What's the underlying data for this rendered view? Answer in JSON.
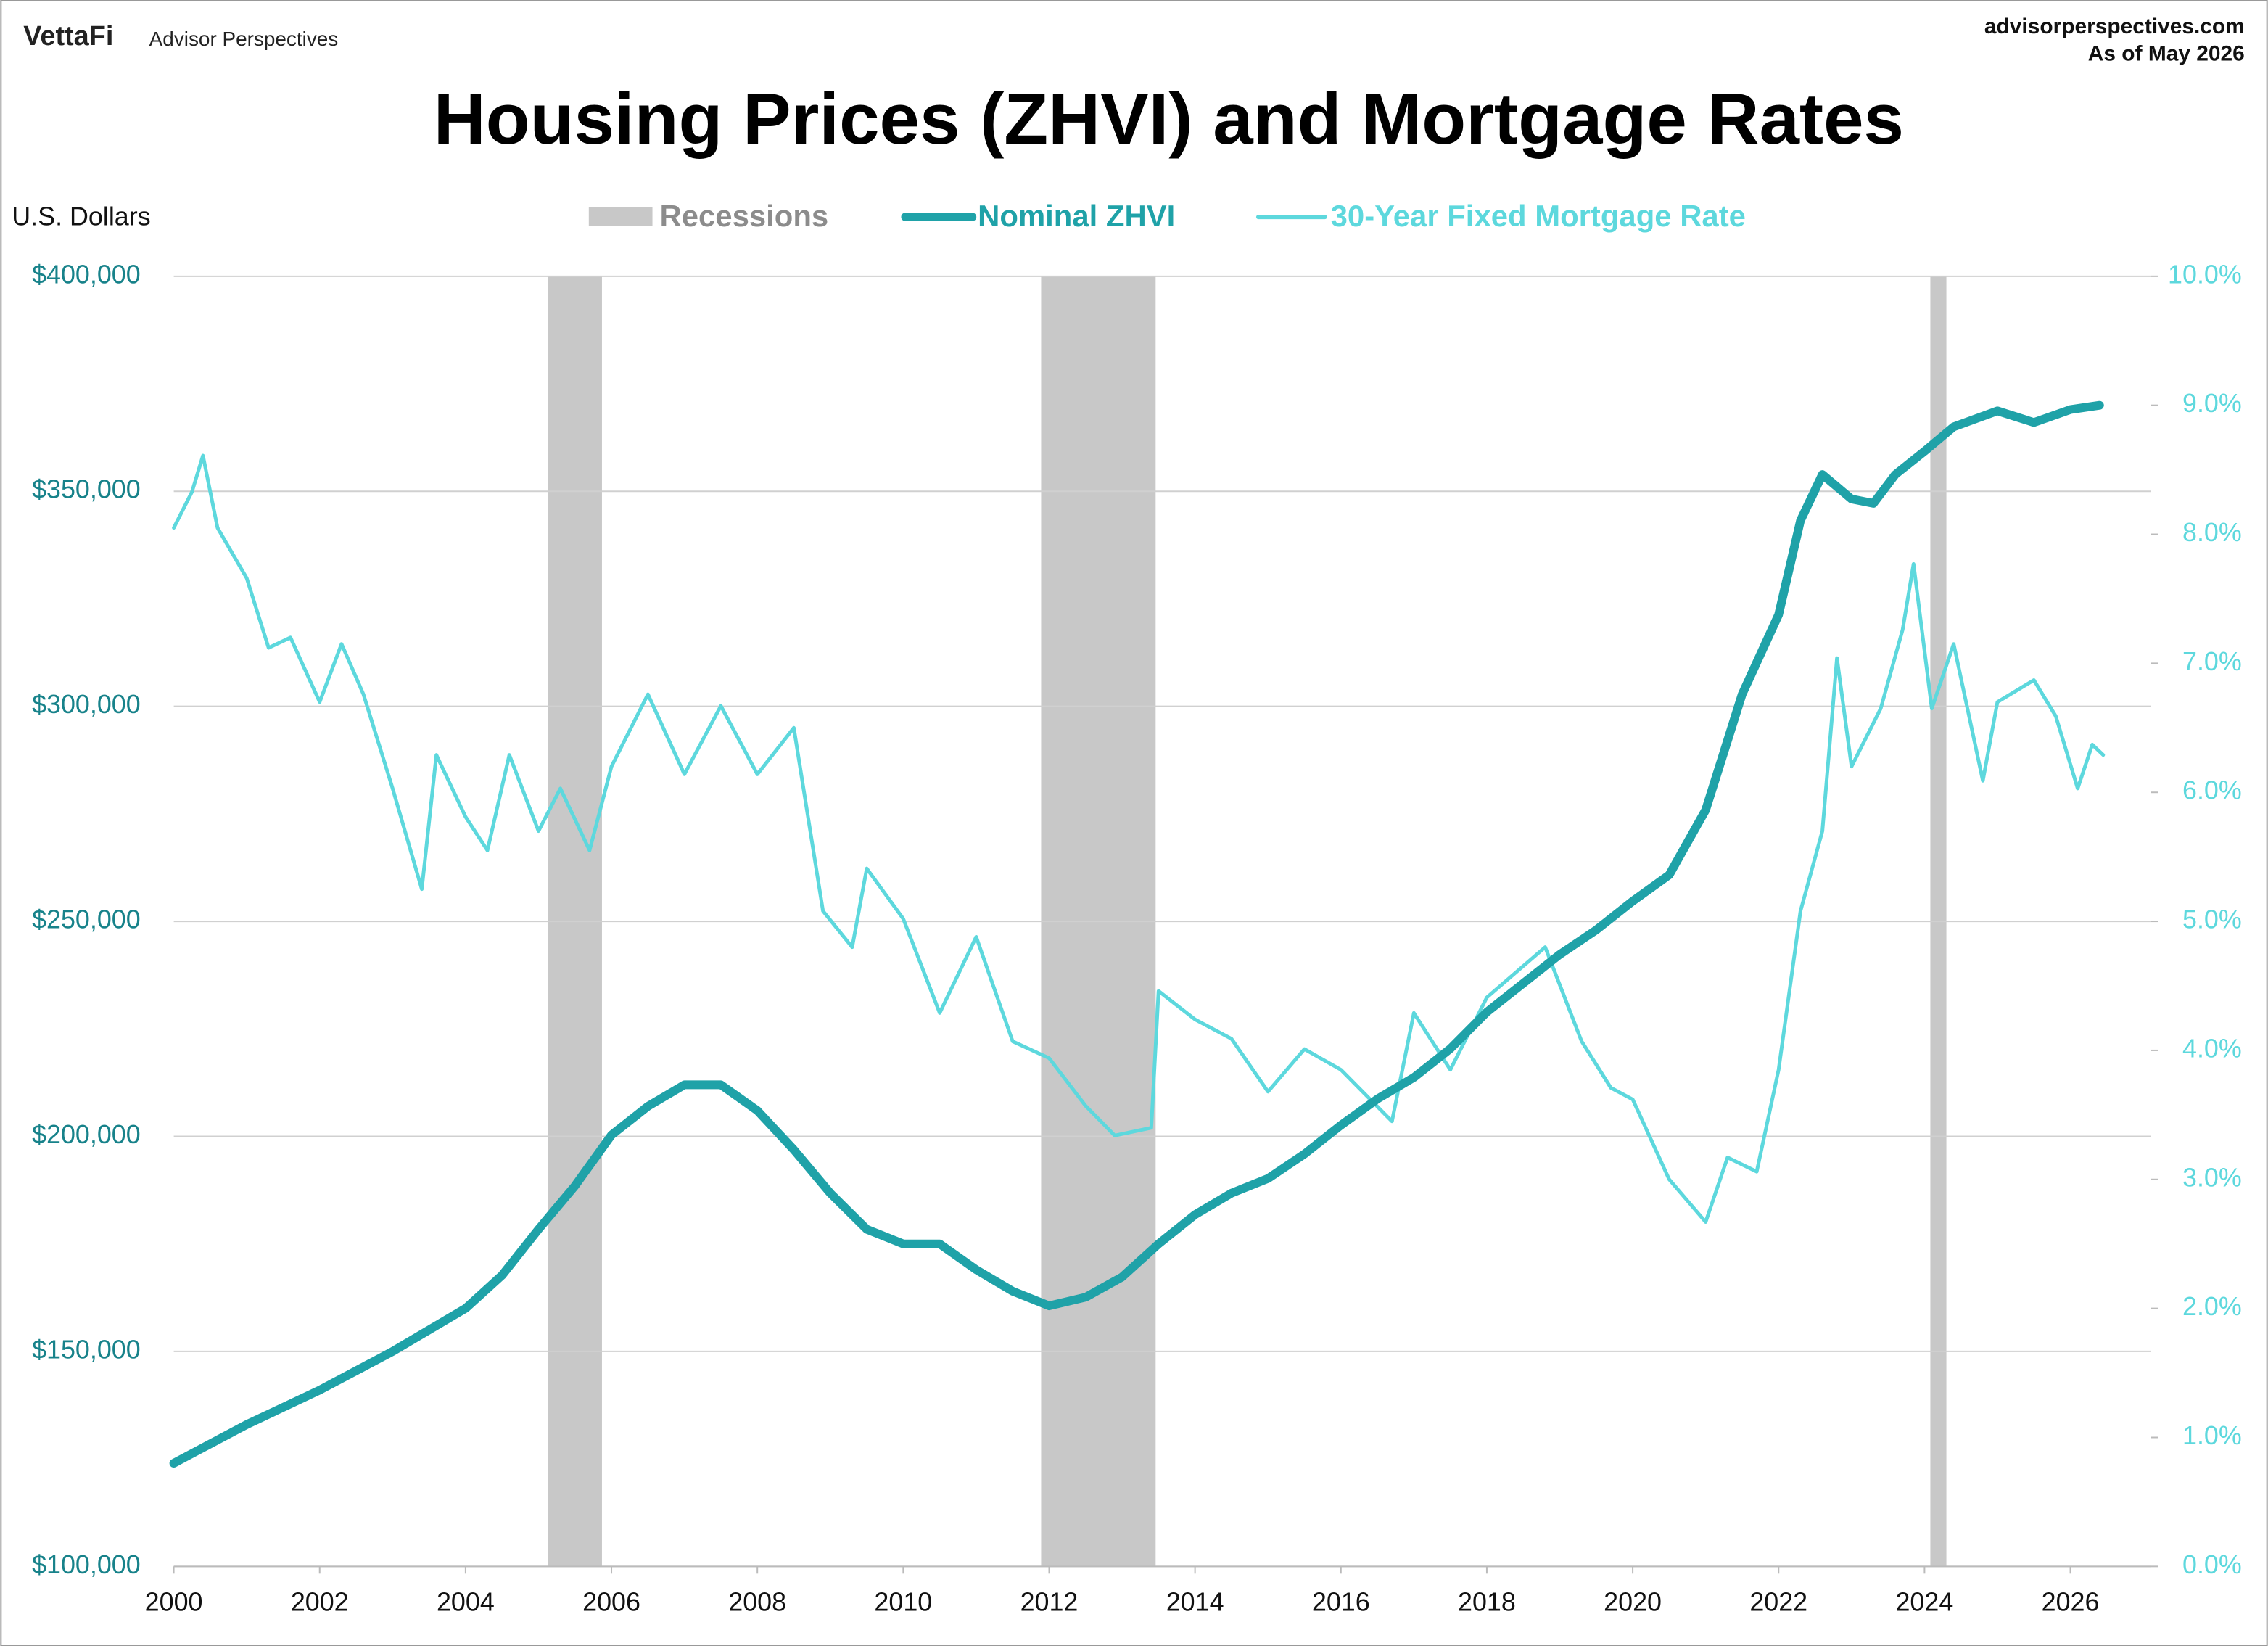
{
  "chart_data": {
    "type": "line",
    "brand": "VettaFi",
    "brand_sub": "Advisor Perspectives",
    "source": "advisorperspectives.com",
    "as_of": "As of May 2026",
    "title": "Housing Prices (ZHVI) and Mortgage Rates",
    "ylabel": "U.S. Dollars",
    "recession_label": "Recessions",
    "recession_color": "#c8c8c8",
    "recessions": [
      [
        2005.13,
        2005.87
      ],
      [
        2011.89,
        2013.46
      ],
      [
        2024.08,
        2024.3
      ]
    ],
    "xlim": [
      2000,
      2027.1
    ],
    "xticks": [
      2000,
      2002,
      2004,
      2006,
      2008,
      2010,
      2012,
      2014,
      2016,
      2018,
      2020,
      2022,
      2024,
      2026
    ],
    "ylim": [
      100000,
      400000
    ],
    "yticks": [
      {
        "value": 100000,
        "label": "$100,000"
      },
      {
        "value": 150000,
        "label": "$150,000"
      },
      {
        "value": 200000,
        "label": "$200,000"
      },
      {
        "value": 250000,
        "label": "$250,000"
      },
      {
        "value": 300000,
        "label": "$300,000"
      },
      {
        "value": 350000,
        "label": "$350,000"
      },
      {
        "value": 400000,
        "label": "$400,000"
      }
    ],
    "y2lim": [
      0,
      10
    ],
    "y2ticks": [
      {
        "value": 0,
        "label": "0.0%"
      },
      {
        "value": 1,
        "label": "1.0%"
      },
      {
        "value": 2,
        "label": "2.0%"
      },
      {
        "value": 3,
        "label": "3.0%"
      },
      {
        "value": 4,
        "label": "4.0%"
      },
      {
        "value": 5,
        "label": "5.0%"
      },
      {
        "value": 6,
        "label": "6.0%"
      },
      {
        "value": 7,
        "label": "7.0%"
      },
      {
        "value": 8,
        "label": "8.0%"
      },
      {
        "value": 9,
        "label": "9.0%"
      },
      {
        "value": 10,
        "label": "10.0%"
      }
    ],
    "grid": true,
    "series": [
      {
        "name": "Nominal ZHVI",
        "color": "#1fa2a8",
        "axis": "y",
        "x": [
          2000,
          2001,
          2002,
          2003,
          2004,
          2004.5,
          2005,
          2005.5,
          2006,
          2006.5,
          2007,
          2007.5,
          2008,
          2008.5,
          2009,
          2009.5,
          2010,
          2010.5,
          2011,
          2011.5,
          2012,
          2012.5,
          2013,
          2013.5,
          2014,
          2014.5,
          2015,
          2015.5,
          2016,
          2016.5,
          2017,
          2017.5,
          2018,
          2018.5,
          2019,
          2019.5,
          2020,
          2020.5,
          2021,
          2021.5,
          2022,
          2022.3,
          2022.6,
          2023,
          2023.3,
          2023.6,
          2024,
          2024.4,
          2025,
          2025.5,
          2026,
          2026.4
        ],
        "values": [
          124000,
          133000,
          141000,
          150000,
          160000,
          167700,
          178400,
          188500,
          200300,
          207000,
          212000,
          212000,
          206000,
          196900,
          186800,
          178400,
          175000,
          175000,
          169000,
          164000,
          160600,
          162600,
          167300,
          175000,
          181800,
          186800,
          190200,
          195900,
          202600,
          208700,
          213700,
          220400,
          228900,
          235600,
          242300,
          248000,
          254700,
          260800,
          275900,
          302800,
          321300,
          343200,
          353900,
          348200,
          347200,
          353900,
          359300,
          365000,
          368700,
          366000,
          369000,
          370000
        ]
      },
      {
        "name": "30-Year Fixed Mortgage Rate",
        "color": "#5dd8dd",
        "axis": "y2",
        "x": [
          2000,
          2000.25,
          2000.4,
          2000.6,
          2001,
          2001.3,
          2001.6,
          2002,
          2002.3,
          2002.6,
          2003,
          2003.4,
          2003.6,
          2004,
          2004.3,
          2004.6,
          2005,
          2005.3,
          2005.7,
          2006,
          2006.5,
          2007,
          2007.5,
          2008,
          2008.5,
          2008.9,
          2009.3,
          2009.5,
          2010,
          2010.5,
          2011,
          2011.5,
          2012,
          2012.5,
          2012.9,
          2013.4,
          2013.5,
          2014,
          2014.5,
          2015,
          2015.5,
          2016,
          2016.7,
          2017,
          2017.5,
          2018,
          2018.8,
          2019.3,
          2019.7,
          2020,
          2020.5,
          2021,
          2021.3,
          2021.7,
          2022,
          2022.3,
          2022.6,
          2022.8,
          2023,
          2023.4,
          2023.7,
          2023.85,
          2024.1,
          2024.4,
          2024.8,
          2025,
          2025.5,
          2025.8,
          2026.1,
          2026.3,
          2026.45
        ],
        "values": [
          8.05,
          8.33,
          8.61,
          8.05,
          7.66,
          7.12,
          7.2,
          6.7,
          7.15,
          6.76,
          6.03,
          5.25,
          6.29,
          5.81,
          5.55,
          6.29,
          5.7,
          6.03,
          5.55,
          6.2,
          6.76,
          6.14,
          6.67,
          6.14,
          6.5,
          5.08,
          4.8,
          5.41,
          5.02,
          4.29,
          4.88,
          4.07,
          3.94,
          3.57,
          3.34,
          3.4,
          4.46,
          4.24,
          4.09,
          3.68,
          4.01,
          3.85,
          3.45,
          4.29,
          3.85,
          4.41,
          4.8,
          4.07,
          3.71,
          3.62,
          3.0,
          2.67,
          3.17,
          3.06,
          3.85,
          5.08,
          5.7,
          7.04,
          6.2,
          6.65,
          7.26,
          7.77,
          6.65,
          7.15,
          6.09,
          6.7,
          6.87,
          6.59,
          6.03,
          6.37,
          6.29
        ]
      }
    ]
  }
}
